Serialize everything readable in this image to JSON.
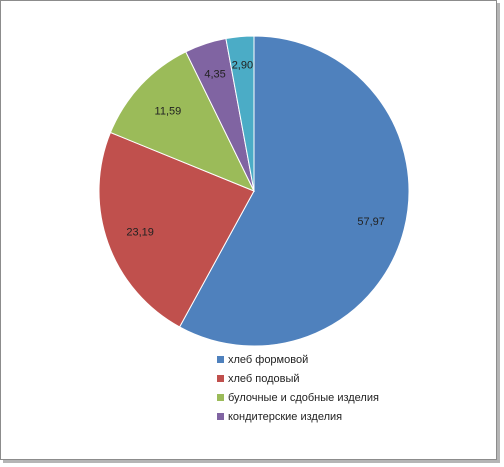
{
  "chart_data": {
    "type": "pie",
    "title": "",
    "categories": [
      "хлеб формовой",
      "хлеб подовый",
      "булочные и сдобные изделия",
      "кондитерские изделия",
      ""
    ],
    "values": [
      57.97,
      23.19,
      11.59,
      4.35,
      2.9
    ],
    "value_labels": [
      "57,97",
      "23,19",
      "11,59",
      "4,35",
      "2,90"
    ],
    "colors": [
      "#4F81BD",
      "#C0504D",
      "#9BBB59",
      "#8064A2",
      "#4BACC6"
    ],
    "start_angle_deg": 0,
    "direction": "clockwise",
    "legend": {
      "placement": "bottom",
      "entries": [
        "хлеб формовой",
        "хлеб подовый",
        "булочные и сдобные изделия",
        "кондитерские изделия"
      ]
    }
  }
}
